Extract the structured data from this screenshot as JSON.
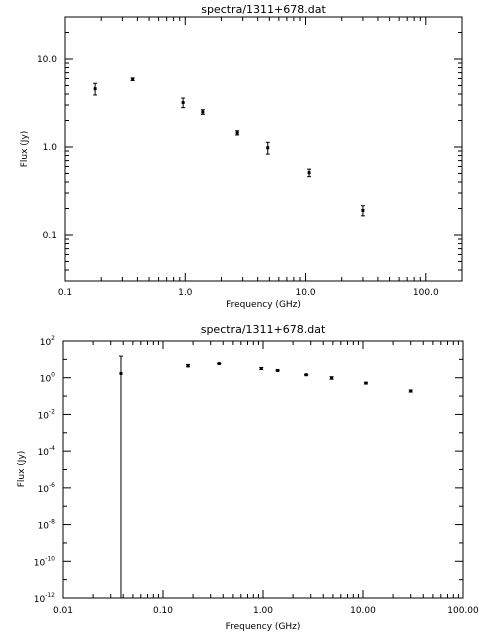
{
  "chart_data": [
    {
      "type": "scatter",
      "title": "spectra/1311+678.dat",
      "xlabel": "Frequency (GHz)",
      "ylabel": "Flux (Jy)",
      "xscale": "log",
      "yscale": "log",
      "xlim": [
        0.1,
        200
      ],
      "ylim": [
        0.03,
        30
      ],
      "grid": false,
      "x_ticks": [
        {
          "value": 0.1,
          "label": "0.1"
        },
        {
          "value": 1,
          "label": "1.0"
        },
        {
          "value": 10,
          "label": "10.0"
        },
        {
          "value": 100,
          "label": "100.0"
        }
      ],
      "y_ticks": [
        {
          "value": 0.1,
          "label": "0.1"
        },
        {
          "value": 1,
          "label": "1.0"
        },
        {
          "value": 10,
          "label": "10.0"
        }
      ],
      "series": [
        {
          "points": [
            {
              "x": 0.178,
              "y": 4.6,
              "err": 0.7
            },
            {
              "x": 0.365,
              "y": 5.9,
              "err": 0.2
            },
            {
              "x": 0.96,
              "y": 3.2,
              "err": 0.4
            },
            {
              "x": 1.4,
              "y": 2.5,
              "err": 0.15
            },
            {
              "x": 2.7,
              "y": 1.45,
              "err": 0.08
            },
            {
              "x": 4.85,
              "y": 0.98,
              "err": 0.15
            },
            {
              "x": 10.7,
              "y": 0.51,
              "err": 0.05
            },
            {
              "x": 30.0,
              "y": 0.19,
              "err": 0.025
            }
          ]
        }
      ]
    },
    {
      "type": "scatter",
      "title": "spectra/1311+678.dat",
      "xlabel": "Frequency (GHz)",
      "ylabel": "Flux (Jy)",
      "xscale": "log",
      "yscale": "log",
      "xlim": [
        0.01,
        100
      ],
      "ylim": [
        1e-12,
        100
      ],
      "grid": false,
      "x_ticks": [
        {
          "value": 0.01,
          "label": "0.01"
        },
        {
          "value": 0.1,
          "label": "0.10"
        },
        {
          "value": 1,
          "label": "1.00"
        },
        {
          "value": 10,
          "label": "10.00"
        },
        {
          "value": 100,
          "label": "100.00"
        }
      ],
      "y_ticks": [
        {
          "value": 1e-12,
          "base": "10",
          "exp": "-12"
        },
        {
          "value": 1e-10,
          "base": "10",
          "exp": "-10"
        },
        {
          "value": 1e-08,
          "base": "10",
          "exp": "-8"
        },
        {
          "value": 1e-06,
          "base": "10",
          "exp": "-6"
        },
        {
          "value": 0.0001,
          "base": "10",
          "exp": "-4"
        },
        {
          "value": 0.01,
          "base": "10",
          "exp": "-2"
        },
        {
          "value": 1,
          "base": "10",
          "exp": "0"
        },
        {
          "value": 100,
          "base": "10",
          "exp": "2"
        }
      ],
      "series": [
        {
          "points": [
            {
              "x": 0.038,
              "y": 1.7,
              "ylo": 1e-12,
              "yhi": 15
            },
            {
              "x": 0.178,
              "y": 4.6,
              "err": 0.7
            },
            {
              "x": 0.365,
              "y": 5.9,
              "err": 0.2
            },
            {
              "x": 0.96,
              "y": 3.2,
              "err": 0.4
            },
            {
              "x": 1.4,
              "y": 2.5,
              "err": 0.15
            },
            {
              "x": 2.7,
              "y": 1.45,
              "err": 0.08
            },
            {
              "x": 4.85,
              "y": 0.98,
              "err": 0.15
            },
            {
              "x": 10.7,
              "y": 0.51,
              "err": 0.05
            },
            {
              "x": 30.0,
              "y": 0.19,
              "err": 0.025
            }
          ]
        }
      ]
    }
  ]
}
